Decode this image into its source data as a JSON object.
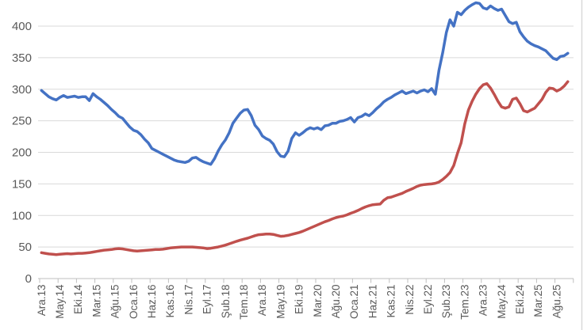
{
  "chart_data": {
    "type": "line",
    "title": "",
    "legend": "none",
    "grid": "horizontal",
    "x_axis": {
      "tick_labels": [
        "Ara.13",
        "May.14",
        "Eki.14",
        "Mar.15",
        "Ağu.15",
        "Oca.16",
        "Haz.16",
        "Kas.16",
        "Nis.17",
        "Eyl.17",
        "Şub.18",
        "Tem.18",
        "Ara.18",
        "May.19",
        "Eki.19",
        "Mar.20",
        "Ağu.20",
        "Oca.21",
        "Haz.21",
        "Kas.21",
        "Nis.22",
        "Eyl.22",
        "Şub.23",
        "Tem.23",
        "Ara.23",
        "May.24",
        "Eki.24",
        "Mar.25",
        "Ağu.25"
      ],
      "label_interval_points": 5,
      "n_points": 144
    },
    "y_axis": {
      "tick_labels": [
        "0",
        "50",
        "100",
        "150",
        "200",
        "250",
        "300",
        "350",
        "400"
      ],
      "ticks": [
        0,
        50,
        100,
        150,
        200,
        250,
        300,
        350,
        400
      ],
      "ylim": [
        0,
        442
      ]
    },
    "series": [
      {
        "name": "series-blue",
        "color": "#4472C4",
        "values": [
          298,
          293,
          288,
          285,
          283,
          287,
          290,
          287,
          288,
          289,
          287,
          288,
          288,
          282,
          293,
          288,
          284,
          279,
          274,
          268,
          263,
          257,
          254,
          247,
          240,
          235,
          233,
          228,
          221,
          215,
          206,
          203,
          200,
          197,
          194,
          191,
          188,
          186,
          185,
          184,
          186,
          191,
          192,
          188,
          185,
          183,
          181,
          190,
          202,
          212,
          220,
          231,
          246,
          254,
          262,
          267,
          268,
          258,
          243,
          236,
          226,
          222,
          219,
          213,
          201,
          194,
          193,
          202,
          222,
          231,
          227,
          231,
          236,
          239,
          237,
          239,
          236,
          242,
          243,
          246,
          246,
          249,
          250,
          252,
          255,
          248,
          255,
          257,
          261,
          258,
          263,
          269,
          274,
          280,
          284,
          287,
          291,
          294,
          297,
          293,
          295,
          297,
          294,
          297,
          299,
          296,
          301,
          292,
          330,
          358,
          390,
          410,
          400,
          422,
          418,
          425,
          430,
          434,
          437,
          436,
          429,
          427,
          432,
          428,
          425,
          427,
          417,
          407,
          404,
          406,
          391,
          383,
          376,
          372,
          369,
          367,
          364,
          361,
          355,
          349,
          347,
          352,
          353,
          357
        ]
      },
      {
        "name": "series-red",
        "color": "#C0504D",
        "values": [
          41,
          40,
          39,
          38.5,
          38,
          38.5,
          39,
          39.5,
          39,
          39.5,
          40,
          40,
          40.5,
          41,
          42,
          43,
          44,
          45,
          45.5,
          46,
          47,
          47.5,
          47,
          46,
          45,
          44,
          43.5,
          44,
          44.5,
          45,
          45.5,
          46,
          46,
          46.5,
          47.5,
          48.5,
          49,
          49.5,
          50,
          50,
          50,
          50,
          49.5,
          49,
          48.5,
          47.5,
          48,
          49,
          50,
          51.5,
          53,
          55,
          57,
          59,
          61,
          62.5,
          64,
          66,
          68,
          69.5,
          70,
          70.5,
          70.5,
          70,
          68.5,
          67,
          67.5,
          68.5,
          70,
          71.5,
          73,
          75,
          77.5,
          80,
          82.5,
          85,
          87.5,
          90,
          92,
          94.5,
          96.5,
          98,
          99,
          101,
          103.5,
          105.5,
          108,
          111,
          113.5,
          115.5,
          117,
          117.5,
          118,
          124,
          128,
          129,
          131,
          133,
          135,
          138,
          140.5,
          143,
          146,
          148,
          149,
          149.5,
          150,
          151,
          153,
          157,
          162,
          168,
          179,
          198,
          215,
          245,
          267,
          281,
          292,
          301,
          307,
          309,
          302,
          292,
          281,
          272,
          270,
          272,
          284,
          286,
          277,
          266,
          264,
          267,
          270,
          277,
          284,
          295,
          302,
          301,
          297,
          300,
          305,
          312
        ]
      }
    ],
    "colors": {
      "gridline": "#D9D9D9",
      "axis_line": "#BFBFBF",
      "tick_label": "#595959",
      "background": "#FFFFFF"
    }
  }
}
